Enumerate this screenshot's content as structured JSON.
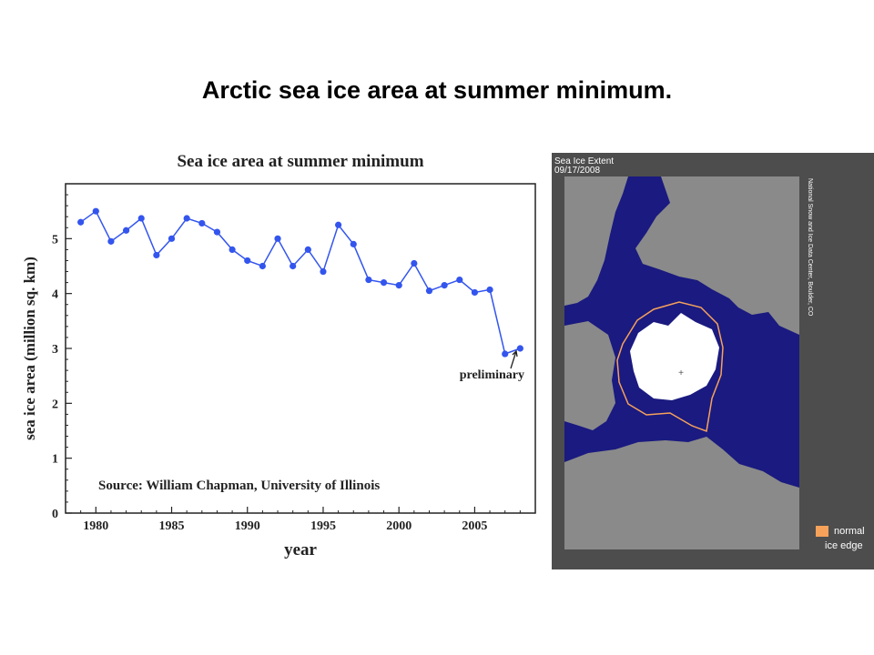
{
  "slide": {
    "title": "Arctic sea ice area at summer minimum."
  },
  "chart_data": {
    "type": "line",
    "title": "Sea ice area at summer minimum",
    "xlabel": "year",
    "ylabel": "sea ice area (million sq. km)",
    "xlim": [
      1978,
      2009
    ],
    "ylim": [
      0,
      6
    ],
    "x_ticks": [
      1980,
      1985,
      1990,
      1995,
      2000,
      2005
    ],
    "y_ticks": [
      0,
      1,
      2,
      3,
      4,
      5
    ],
    "grid": false,
    "color": "#3355ee",
    "x": [
      1979,
      1980,
      1981,
      1982,
      1983,
      1984,
      1985,
      1986,
      1987,
      1988,
      1989,
      1990,
      1991,
      1992,
      1993,
      1994,
      1995,
      1996,
      1997,
      1998,
      1999,
      2000,
      2001,
      2002,
      2003,
      2004,
      2005,
      2006,
      2007,
      2008
    ],
    "values": [
      5.3,
      5.5,
      4.95,
      5.15,
      5.37,
      4.7,
      5.0,
      5.37,
      5.28,
      5.12,
      4.8,
      4.6,
      4.5,
      5.0,
      4.5,
      4.8,
      4.4,
      5.25,
      4.9,
      4.25,
      4.2,
      4.15,
      4.55,
      4.05,
      4.15,
      4.25,
      4.02,
      4.07,
      2.9,
      3.0
    ],
    "annotations": [
      {
        "text": "preliminary",
        "x": 2008,
        "y": 3.0
      },
      {
        "text": "Source: William Chapman, University of Illinois"
      }
    ]
  },
  "map": {
    "title_line1": "Sea Ice Extent",
    "title_line2": "09/17/2008",
    "credit": "National Snow and Ice Data Center, Boulder, CO",
    "legend_label_line1": "normal",
    "legend_label_line2": "ice edge",
    "colors": {
      "ocean": "#1a1a80",
      "land": "#8a8a8a",
      "ice": "#ffffff",
      "normal_edge": "#f7a25a",
      "frame": "#4d4d4d"
    }
  }
}
